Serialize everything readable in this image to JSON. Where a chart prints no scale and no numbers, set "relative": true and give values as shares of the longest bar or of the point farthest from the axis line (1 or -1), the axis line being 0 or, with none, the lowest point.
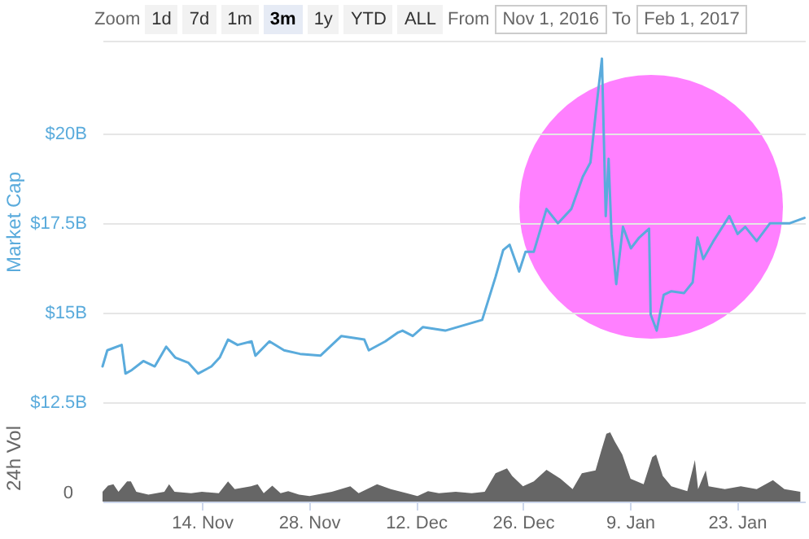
{
  "chart_data": [
    {
      "type": "line",
      "ylabel": "Market Cap",
      "color": "#5aabdc",
      "grid": "y",
      "tick_labels": "y",
      "xlim": [
        "2016-11-01",
        "2017-02-01"
      ],
      "ylim": [
        12.5,
        22.6
      ],
      "yticks": [
        {
          "value": 12.5,
          "label": "$12.5B"
        },
        {
          "value": 15,
          "label": "$15B"
        },
        {
          "value": 17.5,
          "label": "$17.5B"
        },
        {
          "value": 20,
          "label": "$20B"
        },
        {
          "value": 22.6,
          "label": null
        }
      ],
      "annotations": [
        "Zoom",
        "1d",
        "7d",
        "1m",
        "3m",
        "1y",
        "YTD",
        "ALL",
        "From",
        "Nov 1, 2016",
        "To",
        "Feb 1, 2017"
      ],
      "x": [
        "2016-11-01",
        "2016-11-01T15:00",
        "2016-11-03T12:00",
        "2016-11-04T00:00",
        "2016-11-04T20:00",
        "2016-11-06T08:00",
        "2016-11-07T20:00",
        "2016-11-09T08:00",
        "2016-11-10T12:00",
        "2016-11-12T06:00",
        "2016-11-13T12:00",
        "2016-11-15T06:00",
        "2016-11-16T08:00",
        "2016-11-17T10:00",
        "2016-11-18T16:00",
        "2016-11-20T12:00",
        "2016-11-21T00:00",
        "2016-11-22T20:00",
        "2016-11-24T18:00",
        "2016-11-26T20:00",
        "2016-11-29T12:00",
        "2016-12-02T06:00",
        "2016-12-05T06:00",
        "2016-12-05T20:00",
        "2016-12-08T00:00",
        "2016-12-09T16:00",
        "2016-12-10T06:00",
        "2016-12-11T14:00",
        "2016-12-12T22:00",
        "2016-12-15T20:00",
        "2016-12-20T16:00",
        "2016-12-22T10:00",
        "2016-12-23T10:00",
        "2016-12-24T06:00",
        "2016-12-25T12:00",
        "2016-12-26T08:00",
        "2016-12-27T10:00",
        "2016-12-29T02:00",
        "2016-12-30T14:00",
        "2017-01-01T08:00",
        "2017-01-02T20:00",
        "2017-01-03T20:00",
        "2017-01-04T16:00",
        "2017-01-05T08:00",
        "2017-01-05T20:00",
        "2017-01-06T05:00",
        "2017-01-06T14:00",
        "2017-01-07T05:00",
        "2017-01-08T02:00",
        "2017-01-09T03:00",
        "2017-01-10T05:00",
        "2017-01-11T12:00",
        "2017-01-11T17:00",
        "2017-01-12T12:00",
        "2017-01-13T10:00",
        "2017-01-14T10:00",
        "2017-01-16T02:00",
        "2017-01-17T05:00",
        "2017-01-17T20:00",
        "2017-01-18T14:00",
        "2017-01-19T22:00",
        "2017-01-22T00:00",
        "2017-01-23T02:00",
        "2017-01-24T02:00",
        "2017-01-25T14:00",
        "2017-01-27T08:00",
        "2017-01-29T22:00",
        "2017-01-31T20:00"
      ],
      "values": [
        13.5,
        13.95,
        14.1,
        13.3,
        13.4,
        13.65,
        13.5,
        14.05,
        13.75,
        13.6,
        13.3,
        13.5,
        13.75,
        14.25,
        14.1,
        14.2,
        13.8,
        14.2,
        13.95,
        13.85,
        13.8,
        14.35,
        14.25,
        13.95,
        14.2,
        14.45,
        14.5,
        14.35,
        14.6,
        14.5,
        14.8,
        16.0,
        16.75,
        16.9,
        16.15,
        16.7,
        16.7,
        17.9,
        17.5,
        17.9,
        18.8,
        19.2,
        20.85,
        22.1,
        17.7,
        19.3,
        17.2,
        15.8,
        17.4,
        16.8,
        17.1,
        17.35,
        14.95,
        14.5,
        15.5,
        15.6,
        15.55,
        15.85,
        17.1,
        16.5,
        17.0,
        17.7,
        17.2,
        17.4,
        17.0,
        17.5,
        17.5,
        17.65
      ]
    },
    {
      "type": "area",
      "ylabel": "24h Vol",
      "color": "#666666",
      "relative": true,
      "xlim": [
        "2016-11-01",
        "2017-02-01"
      ],
      "xticks": [
        {
          "value": "2016-11-14",
          "label": "14. Nov"
        },
        {
          "value": "2016-11-28",
          "label": "28. Nov"
        },
        {
          "value": "2016-12-12",
          "label": "12. Dec"
        },
        {
          "value": "2016-12-26",
          "label": "26. Dec"
        },
        {
          "value": "2017-01-09",
          "label": "9. Jan"
        },
        {
          "value": "2017-01-23",
          "label": "23. Jan"
        }
      ],
      "annotations": [
        "0"
      ],
      "x": [
        "2016-11-01",
        "2016-11-01T17:00",
        "2016-11-02T10:00",
        "2016-11-03T02:00",
        "2016-11-04T05:00",
        "2016-11-04T17:00",
        "2016-11-05T10:00",
        "2016-11-07T00:00",
        "2016-11-09T02:00",
        "2016-11-09T17:00",
        "2016-11-10T10:00",
        "2016-11-12T14:00",
        "2016-11-14T00:00",
        "2016-11-16T05:00",
        "2016-11-17T10:00",
        "2016-11-18T07:00",
        "2016-11-20T10:00",
        "2016-11-21T07:00",
        "2016-11-22T02:00",
        "2016-11-23T05:00",
        "2016-11-24T07:00",
        "2016-11-25T07:00",
        "2016-11-26T17:00",
        "2016-11-28T02:00",
        "2016-12-01T00:00",
        "2016-12-03T10:00",
        "2016-12-04T12:00",
        "2016-12-06T22:00",
        "2016-12-08T17:00",
        "2016-12-10T19:00",
        "2016-12-12T05:00",
        "2016-12-13T14:00",
        "2016-12-15T00:00",
        "2016-12-17T05:00",
        "2016-12-19T07:00",
        "2016-12-21T00:00",
        "2016-12-22T10:00",
        "2016-12-23T22:00",
        "2016-12-24T14:00",
        "2016-12-26T00:00",
        "2016-12-27T10:00",
        "2016-12-29T02:00",
        "2016-12-30T22:00",
        "2017-01-01T12:00",
        "2017-01-02T17:00",
        "2017-01-04T12:00",
        "2017-01-05T05:00",
        "2017-01-05T22:00",
        "2017-01-06T10:00",
        "2017-01-07T00:00",
        "2017-01-08T00:00",
        "2017-01-09T02:00",
        "2017-01-10T19:00",
        "2017-01-11T22:00",
        "2017-01-12T10:00",
        "2017-01-13T07:00",
        "2017-01-14T10:00",
        "2017-01-16T12:00",
        "2017-01-17T12:00",
        "2017-01-17T22:00",
        "2017-01-18T22:00",
        "2017-01-19T07:00",
        "2017-01-21T10:00",
        "2017-01-23T12:00",
        "2017-01-25T14:00",
        "2017-01-27T17:00",
        "2017-01-29T05:00",
        "2017-01-31T07:00"
      ],
      "values": [
        0.14,
        0.23,
        0.25,
        0.14,
        0.29,
        0.29,
        0.14,
        0.1,
        0.14,
        0.25,
        0.14,
        0.12,
        0.14,
        0.12,
        0.29,
        0.18,
        0.22,
        0.25,
        0.12,
        0.23,
        0.12,
        0.15,
        0.1,
        0.08,
        0.14,
        0.22,
        0.12,
        0.25,
        0.18,
        0.12,
        0.08,
        0.15,
        0.12,
        0.14,
        0.12,
        0.14,
        0.41,
        0.48,
        0.37,
        0.22,
        0.29,
        0.46,
        0.33,
        0.18,
        0.41,
        0.45,
        0.72,
        0.98,
        1.0,
        0.87,
        0.68,
        0.33,
        0.25,
        0.64,
        0.68,
        0.37,
        0.22,
        0.15,
        0.6,
        0.18,
        0.45,
        0.22,
        0.18,
        0.22,
        0.18,
        0.31,
        0.18,
        0.14
      ]
    }
  ]
}
